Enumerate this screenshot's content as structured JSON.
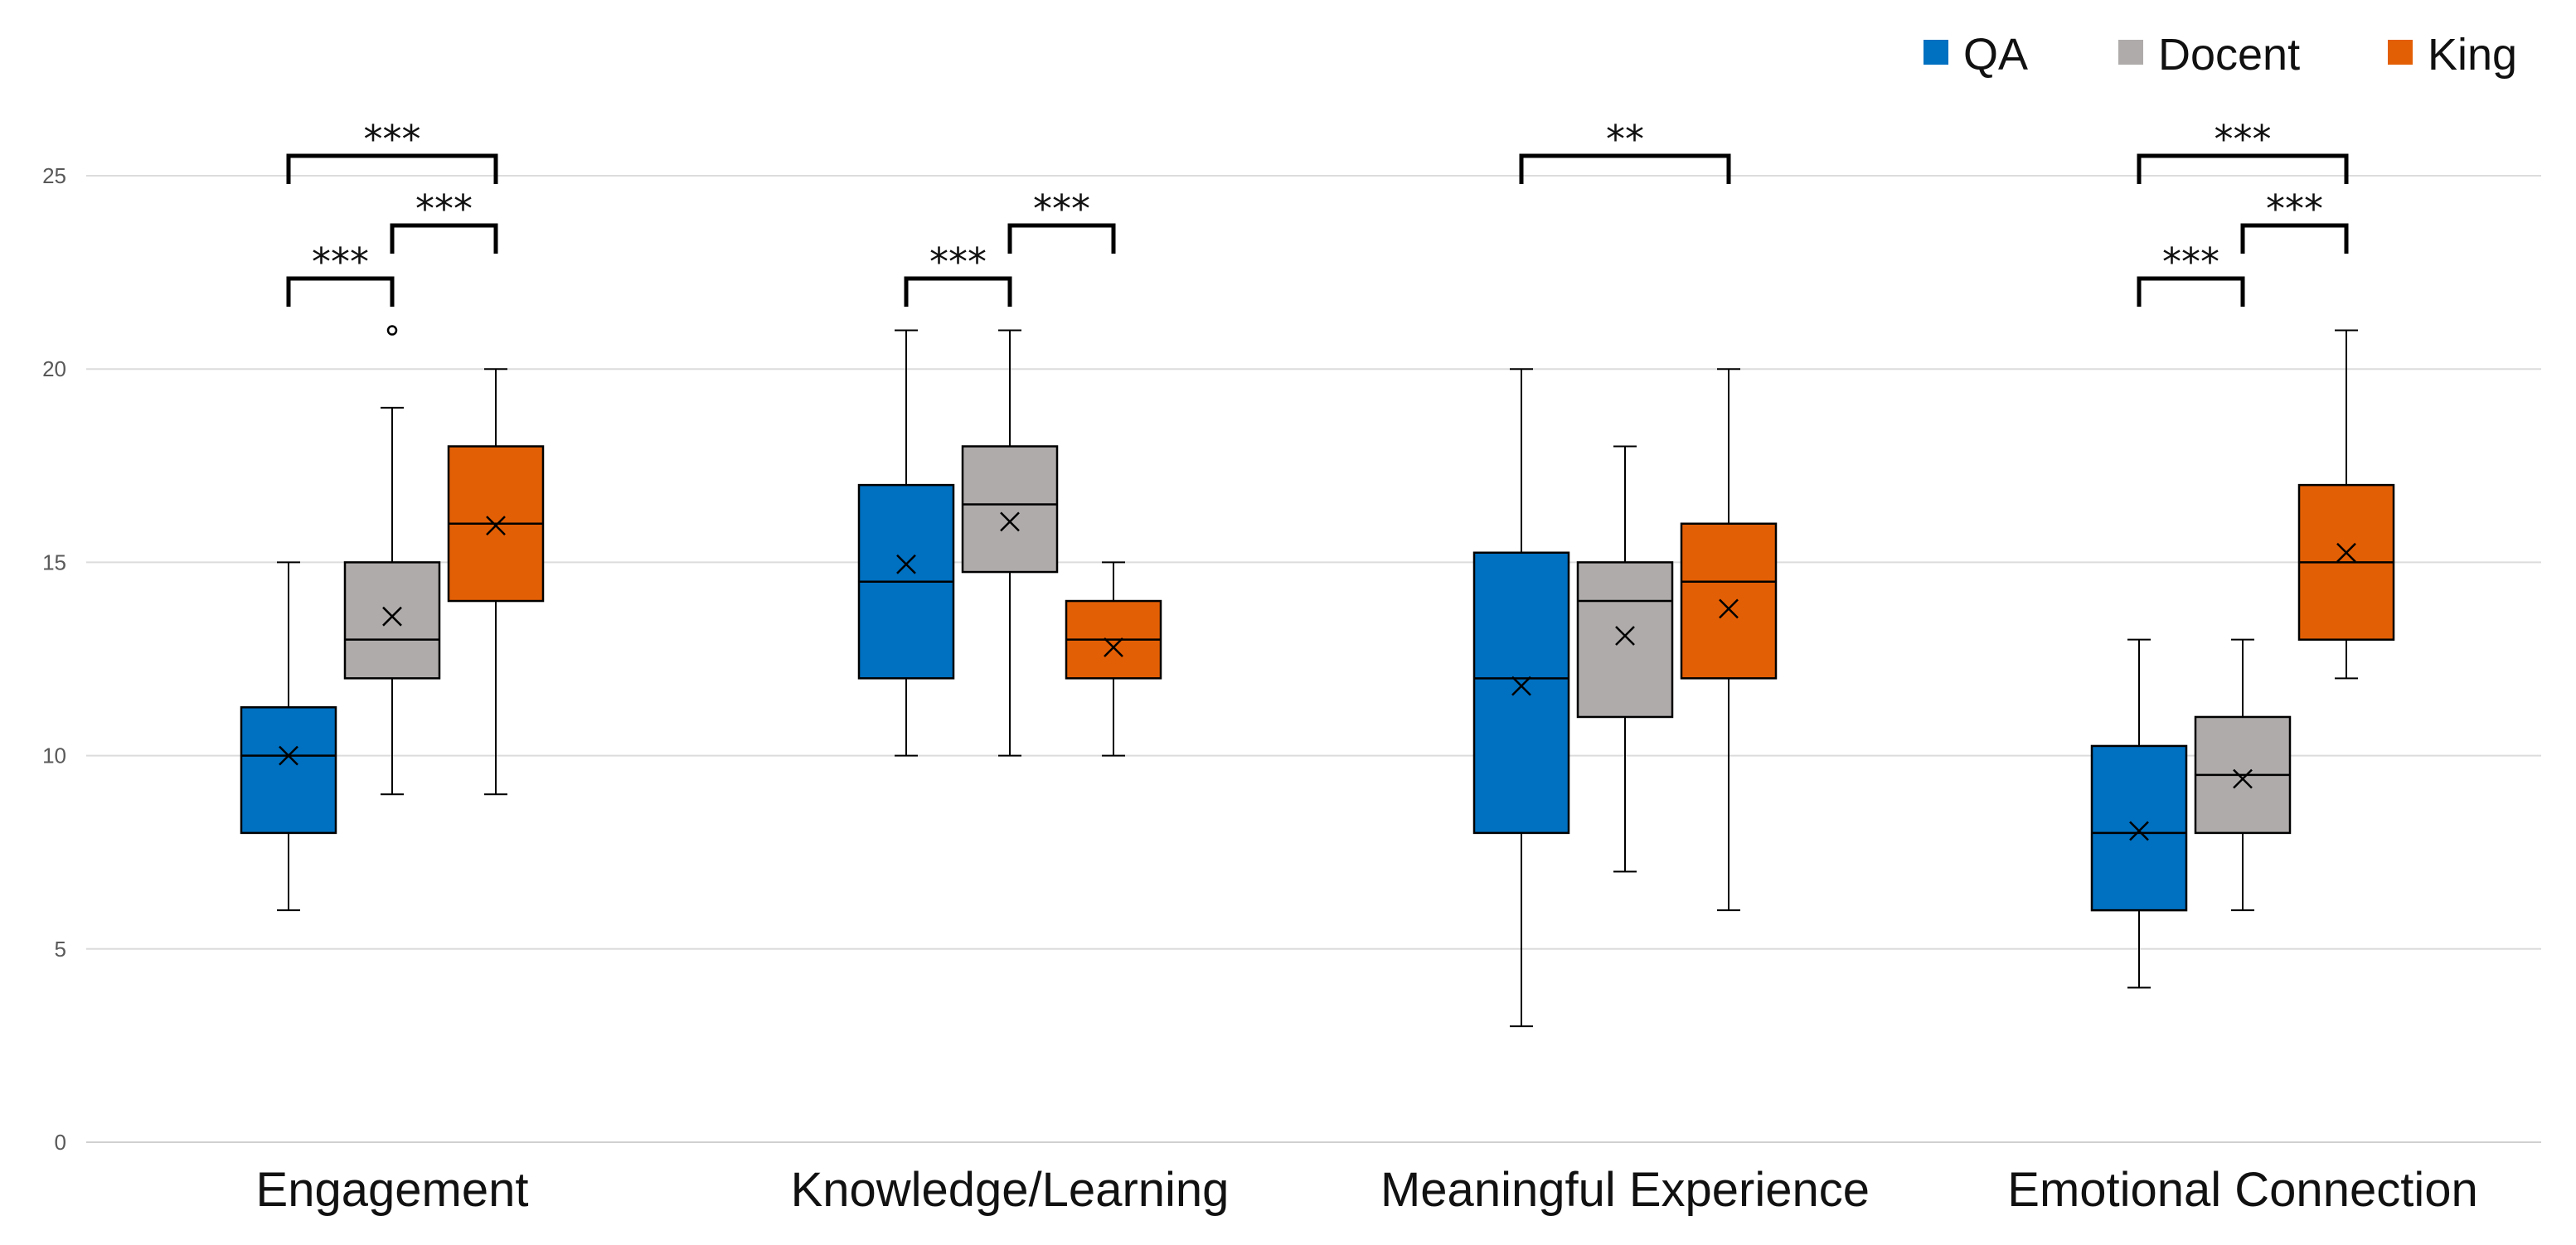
{
  "chart_data": {
    "type": "boxplot",
    "title": "",
    "xlabel": "",
    "ylabel": "",
    "ylim": [
      0,
      25
    ],
    "yticks": [
      "0",
      "5",
      "10",
      "15",
      "20",
      "25"
    ],
    "grid": true,
    "legend_position": "top-right",
    "series": [
      {
        "name": "QA",
        "color": "#0070C0"
      },
      {
        "name": "Docent",
        "color": "#AFABAB"
      },
      {
        "name": "King",
        "color": "#E35F05"
      }
    ],
    "categories": [
      {
        "label": "Engagement",
        "boxes": [
          {
            "series": "QA",
            "min": 6,
            "q1": 8,
            "median": 10,
            "q3": 11.25,
            "max": 15,
            "mean": 10,
            "outliers": []
          },
          {
            "series": "Docent",
            "min": 9,
            "q1": 12,
            "median": 13,
            "q3": 15,
            "max": 19,
            "mean": 13.6,
            "outliers": [
              21
            ]
          },
          {
            "series": "King",
            "min": 9,
            "q1": 14,
            "median": 16,
            "q3": 18,
            "max": 20,
            "mean": 15.95,
            "outliers": []
          }
        ],
        "significance": [
          {
            "from": "QA",
            "to": "King",
            "label": "***",
            "level": 0
          },
          {
            "from": "Docent",
            "to": "King",
            "label": "***",
            "level": 1
          },
          {
            "from": "QA",
            "to": "Docent",
            "label": "***",
            "level": 2
          }
        ]
      },
      {
        "label": "Knowledge/Learning",
        "boxes": [
          {
            "series": "QA",
            "min": 10,
            "q1": 12,
            "median": 14.5,
            "q3": 17,
            "max": 21,
            "mean": 14.95,
            "outliers": []
          },
          {
            "series": "Docent",
            "min": 10,
            "q1": 14.75,
            "median": 16.5,
            "q3": 18,
            "max": 21,
            "mean": 16.05,
            "outliers": []
          },
          {
            "series": "King",
            "min": 10,
            "q1": 12,
            "median": 13,
            "q3": 14,
            "max": 15,
            "mean": 12.8,
            "outliers": []
          }
        ],
        "significance": [
          {
            "from": "Docent",
            "to": "King",
            "label": "***",
            "level": 1
          },
          {
            "from": "QA",
            "to": "Docent",
            "label": "***",
            "level": 2
          }
        ]
      },
      {
        "label": "Meaningful Experience",
        "boxes": [
          {
            "series": "QA",
            "min": 3,
            "q1": 8,
            "median": 12,
            "q3": 15.25,
            "max": 20,
            "mean": 11.8,
            "outliers": []
          },
          {
            "series": "Docent",
            "min": 7,
            "q1": 11,
            "median": 14,
            "q3": 15,
            "max": 18,
            "mean": 13.1,
            "outliers": []
          },
          {
            "series": "King",
            "min": 6,
            "q1": 12,
            "median": 14.5,
            "q3": 16,
            "max": 20,
            "mean": 13.8,
            "outliers": []
          }
        ],
        "significance": [
          {
            "from": "QA",
            "to": "King",
            "label": "**",
            "level": 0
          }
        ]
      },
      {
        "label": "Emotional Connection",
        "boxes": [
          {
            "series": "QA",
            "min": 4,
            "q1": 6,
            "median": 8,
            "q3": 10.25,
            "max": 13,
            "mean": 8.05,
            "outliers": []
          },
          {
            "series": "Docent",
            "min": 6,
            "q1": 8,
            "median": 9.5,
            "q3": 11,
            "max": 13,
            "mean": 9.4,
            "outliers": []
          },
          {
            "series": "King",
            "min": 12,
            "q1": 13,
            "median": 15,
            "q3": 17,
            "max": 21,
            "mean": 15.25,
            "outliers": []
          }
        ],
        "significance": [
          {
            "from": "QA",
            "to": "King",
            "label": "***",
            "level": 0
          },
          {
            "from": "Docent",
            "to": "King",
            "label": "***",
            "level": 1
          },
          {
            "from": "QA",
            "to": "Docent",
            "label": "***",
            "level": 2
          }
        ]
      }
    ]
  }
}
